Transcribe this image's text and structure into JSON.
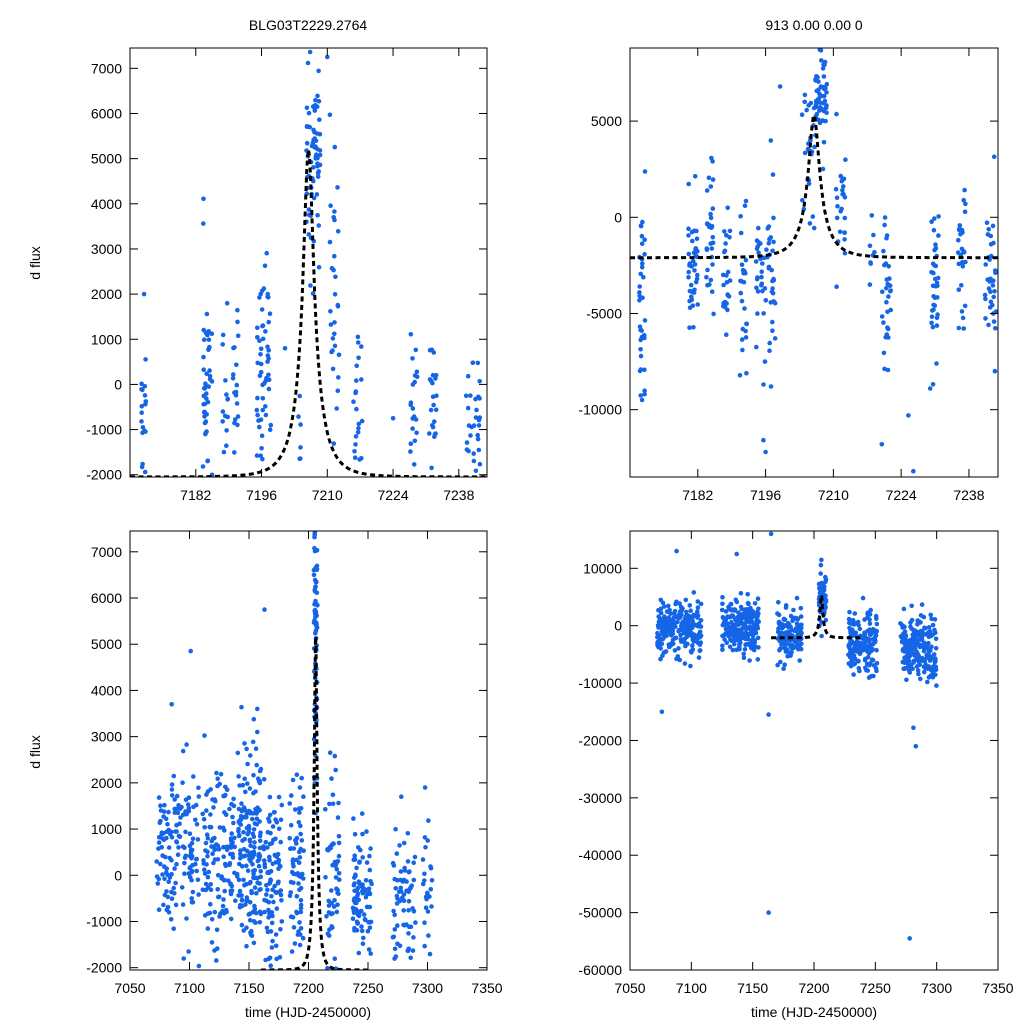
{
  "figure": {
    "title_left": "BLG03T2229.2764",
    "title_right": "913  0.00  0.00  0",
    "ylabel": "d flux",
    "xlabel": "time (HJD-2450000)"
  },
  "colors": {
    "points": "#1565e6",
    "model": "#000000"
  },
  "chart_data": [
    {
      "id": "top-left",
      "type": "scatter",
      "title": "BLG03T2229.2764",
      "xlabel": "",
      "ylabel": "d flux",
      "xlim": [
        7168,
        7244
      ],
      "ylim": [
        -2050,
        7450
      ],
      "xticks": [
        7182,
        7196,
        7210,
        7224,
        7238
      ],
      "xtick_labels": [
        "7182",
        "7196",
        "7210",
        "7224",
        "7238"
      ],
      "yticks": [
        -2000,
        -1000,
        0,
        1000,
        2000,
        3000,
        4000,
        5000,
        6000,
        7000
      ],
      "ytick_labels": [
        "-2000",
        "-1000",
        "0",
        "1000",
        "2000",
        "3000",
        "4000",
        "5000",
        "6000",
        "7000"
      ],
      "grid": false,
      "seed": 11,
      "model": {
        "t0": 7206,
        "u0": 0.22,
        "tE": 5.0,
        "base": -2050,
        "amp_peak": 5200
      },
      "clusters": [
        {
          "x": 7171.0,
          "w": 0.6,
          "y": -1000,
          "s": 800,
          "n": 22
        },
        {
          "x": 7184.5,
          "w": 1.0,
          "y": 200,
          "s": 1100,
          "n": 45
        },
        {
          "x": 7188.3,
          "w": 0.6,
          "y": 0,
          "s": 1000,
          "n": 14
        },
        {
          "x": 7190.5,
          "w": 0.6,
          "y": -300,
          "s": 900,
          "n": 18
        },
        {
          "x": 7196.5,
          "w": 1.5,
          "y": 300,
          "s": 1200,
          "n": 55
        },
        {
          "x": 7204.0,
          "w": 0.6,
          "y": -1000,
          "s": 500,
          "n": 6
        },
        {
          "x": 7207.0,
          "w": 1.5,
          "y": 5000,
          "s": 1300,
          "n": 70
        },
        {
          "x": 7211.5,
          "w": 1.0,
          "y": 2000,
          "s": 2000,
          "n": 30
        },
        {
          "x": 7216.5,
          "w": 1.0,
          "y": -500,
          "s": 900,
          "n": 22
        },
        {
          "x": 7228.5,
          "w": 0.8,
          "y": -400,
          "s": 800,
          "n": 20
        },
        {
          "x": 7232.5,
          "w": 0.8,
          "y": -500,
          "s": 800,
          "n": 22
        },
        {
          "x": 7241.0,
          "w": 1.5,
          "y": -700,
          "s": 700,
          "n": 30
        }
      ],
      "points": [
        {
          "x": 7171.0,
          "y": 2000
        },
        {
          "x": 7201.0,
          "y": 800
        },
        {
          "x": 7224.0,
          "y": -750
        },
        {
          "x": 7210.0,
          "y": 7250
        }
      ]
    },
    {
      "id": "top-right",
      "type": "scatter",
      "title": "913  0.00  0.00  0",
      "xlabel": "",
      "ylabel": "",
      "xlim": [
        7168,
        7244
      ],
      "ylim": [
        -13500,
        8800
      ],
      "xticks": [
        7182,
        7196,
        7210,
        7224,
        7238
      ],
      "xtick_labels": [
        "7182",
        "7196",
        "7210",
        "7224",
        "7238"
      ],
      "yticks": [
        -10000,
        -5000,
        0,
        5000
      ],
      "ytick_labels": [
        "-10000",
        "-5000",
        "0",
        "5000"
      ],
      "grid": false,
      "seed": 23,
      "model": {
        "t0": 7206,
        "u0": 0.22,
        "tE": 5.0,
        "base": -2100,
        "amp_peak": 5300
      },
      "clusters": [
        {
          "x": 7170.5,
          "w": 0.6,
          "y": -3500,
          "s": 2600,
          "n": 35
        },
        {
          "x": 7181.0,
          "w": 1.0,
          "y": -2000,
          "s": 1800,
          "n": 40
        },
        {
          "x": 7184.5,
          "w": 0.8,
          "y": -1200,
          "s": 1700,
          "n": 30
        },
        {
          "x": 7188.0,
          "w": 0.8,
          "y": -2800,
          "s": 2000,
          "n": 25
        },
        {
          "x": 7191.5,
          "w": 0.8,
          "y": -4000,
          "s": 2000,
          "n": 25
        },
        {
          "x": 7196.0,
          "w": 2.0,
          "y": -2500,
          "s": 2500,
          "n": 60
        },
        {
          "x": 7205.0,
          "w": 1.5,
          "y": 3000,
          "s": 2000,
          "n": 30
        },
        {
          "x": 7207.5,
          "w": 1.2,
          "y": 6000,
          "s": 1300,
          "n": 55
        },
        {
          "x": 7211.5,
          "w": 1.0,
          "y": 800,
          "s": 1600,
          "n": 25
        },
        {
          "x": 7218.0,
          "w": 0.5,
          "y": -1500,
          "s": 1000,
          "n": 8
        },
        {
          "x": 7221.0,
          "w": 1.0,
          "y": -3500,
          "s": 2000,
          "n": 30
        },
        {
          "x": 7231.0,
          "w": 0.8,
          "y": -2800,
          "s": 2000,
          "n": 35
        },
        {
          "x": 7236.5,
          "w": 0.8,
          "y": -2500,
          "s": 1800,
          "n": 30
        },
        {
          "x": 7242.5,
          "w": 1.2,
          "y": -3000,
          "s": 1800,
          "n": 35
        }
      ],
      "points": [
        {
          "x": 7196.0,
          "y": -12200
        },
        {
          "x": 7220.0,
          "y": -11800
        },
        {
          "x": 7225.5,
          "y": -10300
        },
        {
          "x": 7226.5,
          "y": -13200
        },
        {
          "x": 7230.0,
          "y": -8900
        },
        {
          "x": 7170.5,
          "y": -9500
        },
        {
          "x": 7199.0,
          "y": 6800
        }
      ]
    },
    {
      "id": "bottom-left",
      "type": "scatter",
      "title": "",
      "xlabel": "time (HJD-2450000)",
      "ylabel": "d flux",
      "xlim": [
        7050,
        7350
      ],
      "ylim": [
        -2050,
        7450
      ],
      "xticks": [
        7050,
        7100,
        7150,
        7200,
        7250,
        7300,
        7350
      ],
      "xtick_labels": [
        "7050",
        "7100",
        "7150",
        "7200",
        "7250",
        "7300",
        "7350"
      ],
      "yticks": [
        -2000,
        -1000,
        0,
        1000,
        2000,
        3000,
        4000,
        5000,
        6000,
        7000
      ],
      "ytick_labels": [
        "-2000",
        "-1000",
        "0",
        "1000",
        "2000",
        "3000",
        "4000",
        "5000",
        "6000",
        "7000"
      ],
      "grid": false,
      "seed": 37,
      "model": {
        "t0": 7206,
        "u0": 0.22,
        "tE": 5.0,
        "base": -2050,
        "amp_peak": 5200,
        "xrange": [
          7160,
          7250
        ]
      },
      "clusters": [
        {
          "x": 7090,
          "w": 18,
          "y": 400,
          "s": 1000,
          "n": 150
        },
        {
          "x": 7125,
          "w": 14,
          "y": 300,
          "s": 900,
          "n": 130
        },
        {
          "x": 7150,
          "w": 10,
          "y": 600,
          "s": 1000,
          "n": 170
        },
        {
          "x": 7170,
          "w": 8,
          "y": 0,
          "s": 900,
          "n": 90
        },
        {
          "x": 7190,
          "w": 6,
          "y": 200,
          "s": 1200,
          "n": 70
        },
        {
          "x": 7206,
          "w": 1.5,
          "y": 5200,
          "s": 1500,
          "n": 80
        },
        {
          "x": 7220,
          "w": 6,
          "y": 0,
          "s": 1000,
          "n": 60
        },
        {
          "x": 7245,
          "w": 8,
          "y": -500,
          "s": 800,
          "n": 90
        },
        {
          "x": 7280,
          "w": 10,
          "y": -600,
          "s": 800,
          "n": 70
        },
        {
          "x": 7300,
          "w": 4,
          "y": -500,
          "s": 700,
          "n": 25
        }
      ],
      "points": [
        {
          "x": 7101,
          "y": 4850
        },
        {
          "x": 7163,
          "y": 5750
        },
        {
          "x": 7157,
          "y": 3600
        },
        {
          "x": 7085,
          "y": 3700
        },
        {
          "x": 7298,
          "y": 1900
        },
        {
          "x": 7278,
          "y": 1700
        }
      ]
    },
    {
      "id": "bottom-right",
      "type": "scatter",
      "title": "",
      "xlabel": "time (HJD-2450000)",
      "ylabel": "",
      "xlim": [
        7050,
        7350
      ],
      "ylim": [
        -60000,
        16500
      ],
      "xticks": [
        7050,
        7100,
        7150,
        7200,
        7250,
        7300,
        7350
      ],
      "xtick_labels": [
        "7050",
        "7100",
        "7150",
        "7200",
        "7250",
        "7300",
        "7350"
      ],
      "yticks": [
        -60000,
        -50000,
        -40000,
        -30000,
        -20000,
        -10000,
        0,
        10000
      ],
      "ytick_labels": [
        "-60000",
        "-50000",
        "-40000",
        "-30000",
        "-20000",
        "-10000",
        "0",
        "10000"
      ],
      "grid": false,
      "seed": 53,
      "model": {
        "t0": 7206,
        "u0": 0.22,
        "tE": 5.0,
        "base": -2100,
        "amp_peak": 5300,
        "xrange": [
          7165,
          7240
        ]
      },
      "clusters": [
        {
          "x": 7090,
          "w": 18,
          "y": -500,
          "s": 2300,
          "n": 240
        },
        {
          "x": 7140,
          "w": 15,
          "y": 0,
          "s": 2300,
          "n": 240
        },
        {
          "x": 7180,
          "w": 10,
          "y": -1500,
          "s": 2300,
          "n": 140
        },
        {
          "x": 7207,
          "w": 3,
          "y": 4500,
          "s": 2500,
          "n": 70
        },
        {
          "x": 7240,
          "w": 12,
          "y": -3000,
          "s": 2500,
          "n": 170
        },
        {
          "x": 7285,
          "w": 15,
          "y": -4000,
          "s": 2600,
          "n": 220
        }
      ],
      "points": [
        {
          "x": 7088,
          "y": 13000
        },
        {
          "x": 7137,
          "y": 12500
        },
        {
          "x": 7165,
          "y": 16000
        },
        {
          "x": 7163,
          "y": -15500
        },
        {
          "x": 7076,
          "y": -15000
        },
        {
          "x": 7283,
          "y": -21000
        },
        {
          "x": 7281,
          "y": -17800
        },
        {
          "x": 7163,
          "y": -50000
        },
        {
          "x": 7165,
          "y": -60000
        },
        {
          "x": 7278,
          "y": -54500
        }
      ]
    }
  ]
}
